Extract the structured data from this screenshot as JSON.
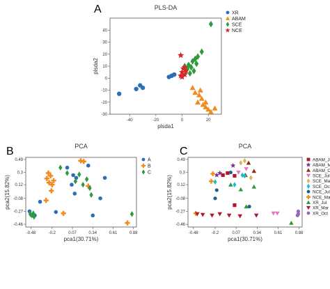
{
  "chart_data": [
    {
      "panel": "A",
      "type": "scatter",
      "title": "PLS-DA",
      "xlabel": "plsda1",
      "ylabel": "plsda2",
      "xlim": [
        -55,
        30
      ],
      "ylim": [
        -30,
        50
      ],
      "xticks": [
        -40,
        -20,
        0,
        20
      ],
      "yticks": [
        -30,
        -20,
        -10,
        0,
        10,
        20,
        30,
        40
      ],
      "grid": false,
      "legend": "top-left",
      "series": [
        {
          "name": "XR",
          "marker": "circle",
          "color": "#2c6fb6",
          "points": [
            [
              -48,
              -13
            ],
            [
              -35,
              -9
            ],
            [
              -32,
              -6
            ],
            [
              -30,
              -8
            ],
            [
              -10,
              1
            ],
            [
              -8,
              2
            ],
            [
              -6,
              3
            ]
          ]
        },
        {
          "name": "ABAM",
          "marker": "triangle",
          "color": "#f28a1e",
          "points": [
            [
              8,
              -8
            ],
            [
              10,
              -12
            ],
            [
              13,
              -14
            ],
            [
              15,
              -17
            ],
            [
              12,
              -20
            ],
            [
              16,
              -22
            ],
            [
              18,
              -24
            ],
            [
              20,
              -26
            ],
            [
              22,
              -28
            ],
            [
              25,
              -25
            ],
            [
              18,
              -20
            ],
            [
              14,
              -10
            ]
          ]
        },
        {
          "name": "SCE",
          "marker": "diamond",
          "color": "#2e9a3e",
          "points": [
            [
              22,
              45
            ],
            [
              15,
              22
            ],
            [
              12,
              18
            ],
            [
              10,
              16
            ],
            [
              8,
              14
            ],
            [
              5,
              11
            ],
            [
              7,
              9
            ],
            [
              4,
              8
            ],
            [
              2,
              10
            ],
            [
              3,
              6
            ],
            [
              6,
              4
            ],
            [
              9,
              6
            ],
            [
              11,
              12
            ]
          ]
        },
        {
          "name": "NCE",
          "marker": "star",
          "color": "#d62728",
          "points": [
            [
              -1,
              19
            ],
            [
              0,
              5
            ],
            [
              1,
              8
            ],
            [
              2,
              3
            ],
            [
              3,
              6
            ],
            [
              -1,
              2
            ],
            [
              0,
              1
            ],
            [
              2,
              9
            ]
          ]
        }
      ]
    },
    {
      "panel": "B",
      "type": "scatter",
      "title": "PCA",
      "xlabel": "pca1(30.71%)",
      "ylabel": "pca2(15.82%)",
      "xlim": [
        -0.55,
        0.92
      ],
      "ylim": [
        -0.5,
        0.52
      ],
      "xticks": [
        -0.48,
        -0.2,
        0.07,
        0.34,
        0.61,
        0.88
      ],
      "yticks": [
        -0.46,
        -0.27,
        -0.08,
        0.12,
        0.3,
        0.49
      ],
      "xtick_labels": [
        "-0.48",
        "-0.2",
        "0.07",
        "0.34",
        "0.61",
        "0.88"
      ],
      "ytick_labels": [
        "-0.46",
        "-0.27",
        "-0.08",
        "0.12",
        "0.3",
        "0.49"
      ],
      "grid": false,
      "legend": "top-right",
      "series": [
        {
          "name": "A",
          "marker": "circle",
          "color": "#2c6fb6",
          "points": [
            [
              -0.5,
              -0.27
            ],
            [
              -0.43,
              -0.33
            ],
            [
              -0.36,
              -0.13
            ],
            [
              -0.15,
              -0.28
            ],
            [
              0.0,
              0.37
            ],
            [
              0.08,
              0.26
            ],
            [
              0.12,
              0.22
            ],
            [
              0.28,
              0.4
            ],
            [
              0.5,
              0.22
            ],
            [
              0.44,
              -0.08
            ],
            [
              0.1,
              -0.01
            ],
            [
              0.06,
              0.12
            ],
            [
              0.34,
              -0.33
            ]
          ]
        },
        {
          "name": "B",
          "marker": "plus",
          "color": "#f28a1e",
          "points": [
            [
              -0.25,
              0.29
            ],
            [
              -0.22,
              0.25
            ],
            [
              -0.27,
              0.21
            ],
            [
              -0.18,
              0.18
            ],
            [
              -0.24,
              0.15
            ],
            [
              -0.2,
              0.12
            ],
            [
              -0.21,
              0.03
            ],
            [
              -0.28,
              -0.11
            ],
            [
              -0.05,
              -0.3
            ],
            [
              0.18,
              0.47
            ],
            [
              0.22,
              0.46
            ],
            [
              0.28,
              0.1
            ],
            [
              0.8,
              -0.44
            ]
          ]
        },
        {
          "name": "C",
          "marker": "diamond",
          "color": "#2e9a3e",
          "points": [
            [
              -0.49,
              -0.31
            ],
            [
              -0.47,
              -0.33
            ],
            [
              -0.45,
              -0.3
            ],
            [
              -0.44,
              -0.35
            ],
            [
              -0.09,
              0.37
            ],
            [
              0.0,
              0.29
            ],
            [
              0.16,
              0.27
            ],
            [
              0.11,
              0.17
            ],
            [
              0.21,
              0.12
            ],
            [
              0.3,
              0.07
            ],
            [
              0.32,
              -0.03
            ],
            [
              0.26,
              0.2
            ],
            [
              0.86,
              -0.31
            ]
          ]
        }
      ]
    },
    {
      "panel": "C",
      "type": "scatter",
      "title": "PCA",
      "xlabel": "pca1(30.71%)",
      "ylabel": "pca2(15.82%)",
      "xlim": [
        -0.55,
        0.92
      ],
      "ylim": [
        -0.5,
        0.52
      ],
      "xticks": [
        -0.48,
        -0.2,
        0.07,
        0.34,
        0.61,
        0.88
      ],
      "yticks": [
        -0.46,
        -0.27,
        -0.08,
        0.12,
        0.3,
        0.49
      ],
      "xtick_labels": [
        "-0.48",
        "-0.2",
        "0.07",
        "0.34",
        "0.61",
        "0.88"
      ],
      "ytick_labels": [
        "-0.46",
        "-0.27",
        "-0.08",
        "0.12",
        "0.3",
        "0.49"
      ],
      "grid": false,
      "legend": "right",
      "series": [
        {
          "name": "ABAM_Jul",
          "marker": "square",
          "color": "#b2182b",
          "points": [
            [
              -0.1,
              0.26
            ],
            [
              -0.04,
              0.29
            ],
            [
              0.05,
              0.25
            ],
            [
              0.05,
              -0.18
            ]
          ]
        },
        {
          "name": "ABAM_Mar",
          "marker": "star",
          "color": "#7b3294",
          "points": [
            [
              -0.18,
              0.26
            ],
            [
              -0.14,
              0.29
            ],
            [
              0.03,
              0.4
            ]
          ]
        },
        {
          "name": "ABAM_Oct",
          "marker": "triangle",
          "color": "#8c2d04",
          "points": [
            [
              0.23,
              0.44
            ],
            [
              0.3,
              0.32
            ],
            [
              0.19,
              0.26
            ]
          ]
        },
        {
          "name": "SCE_Jul",
          "marker": "triangle-down",
          "color": "#e377c2",
          "points": [
            [
              0.1,
              0.3
            ],
            [
              0.2,
              0.35
            ],
            [
              0.55,
              -0.3
            ],
            [
              0.6,
              -0.3
            ]
          ]
        },
        {
          "name": "SCE_Mar",
          "marker": "diamond",
          "color": "#d6b656",
          "points": [
            [
              0.18,
              0.47
            ],
            [
              0.13,
              0.44
            ],
            [
              0.26,
              0.22
            ]
          ]
        },
        {
          "name": "SCE_Oct",
          "marker": "diamond",
          "color": "#17becf",
          "points": [
            [
              0.15,
              0.26
            ],
            [
              0.05,
              0.12
            ],
            [
              0.18,
              0.25
            ],
            [
              -0.2,
              0.16
            ]
          ]
        },
        {
          "name": "NCE_Jul",
          "marker": "circle",
          "color": "#1f5f8b",
          "points": [
            [
              -0.2,
              -0.08
            ],
            [
              -0.18,
              0.04
            ],
            [
              0.0,
              0.3
            ],
            [
              0.24,
              -0.2
            ]
          ]
        },
        {
          "name": "NCE_Mar",
          "marker": "plus",
          "color": "#f28a1e",
          "points": [
            [
              -0.23,
              0.28
            ],
            [
              -0.25,
              0.17
            ],
            [
              -0.45,
              -0.3
            ]
          ]
        },
        {
          "name": "XR_Jul",
          "marker": "triangle",
          "color": "#2e9a3e",
          "points": [
            [
              0.0,
              0.12
            ],
            [
              0.13,
              0.05
            ],
            [
              0.3,
              0.09
            ],
            [
              0.2,
              -0.2
            ],
            [
              0.78,
              -0.44
            ]
          ]
        },
        {
          "name": "XR_Mar",
          "marker": "triangle-down",
          "color": "#b2182b",
          "points": [
            [
              -0.43,
              -0.31
            ],
            [
              -0.36,
              -0.32
            ],
            [
              -0.24,
              -0.33
            ],
            [
              -0.14,
              -0.31
            ],
            [
              -0.02,
              -0.33
            ],
            [
              0.12,
              -0.34
            ],
            [
              0.33,
              -0.33
            ]
          ]
        },
        {
          "name": "XR_Oct",
          "marker": "circle",
          "color": "#9467bd",
          "points": [
            [
              0.87,
              -0.27
            ],
            [
              0.87,
              -0.31
            ],
            [
              0.86,
              -0.33
            ]
          ]
        }
      ]
    }
  ]
}
